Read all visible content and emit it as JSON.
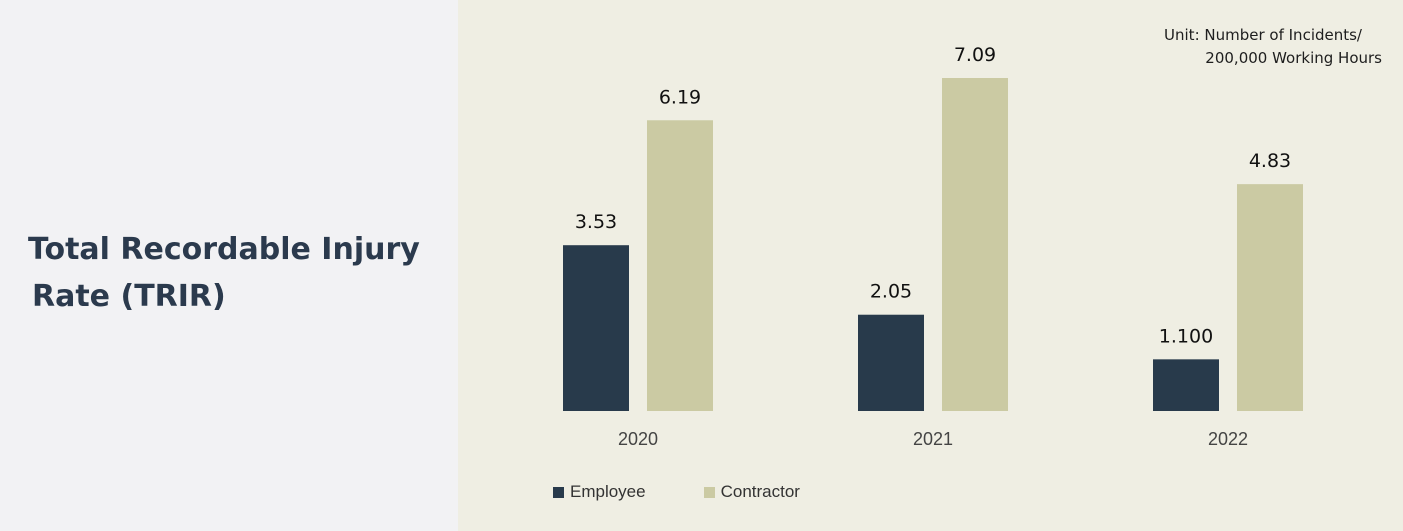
{
  "title": {
    "line1": "Total Recordable Injury",
    "line2": "Rate (TRIR)"
  },
  "unit_note": {
    "line1": "Unit: Number of Incidents/",
    "line2": "200,000 Working Hours"
  },
  "colors": {
    "employee": "#283a4b",
    "contractor": "#cbcaa3",
    "chart_bg": "#efeee3",
    "page_bg": "#f2f2f4"
  },
  "chart_data": {
    "type": "bar",
    "categories": [
      "2020",
      "2021",
      "2022"
    ],
    "series": [
      {
        "name": "Employee",
        "values": [
          3.53,
          2.05,
          1.1
        ],
        "labels": [
          "3.53",
          "2.05",
          "1.100"
        ]
      },
      {
        "name": "Contractor",
        "values": [
          6.19,
          7.09,
          4.83
        ],
        "labels": [
          "6.19",
          "7.09",
          "4.83"
        ]
      }
    ],
    "ylim": [
      0,
      7.09
    ],
    "grid": false,
    "legend": "bottom-left"
  }
}
